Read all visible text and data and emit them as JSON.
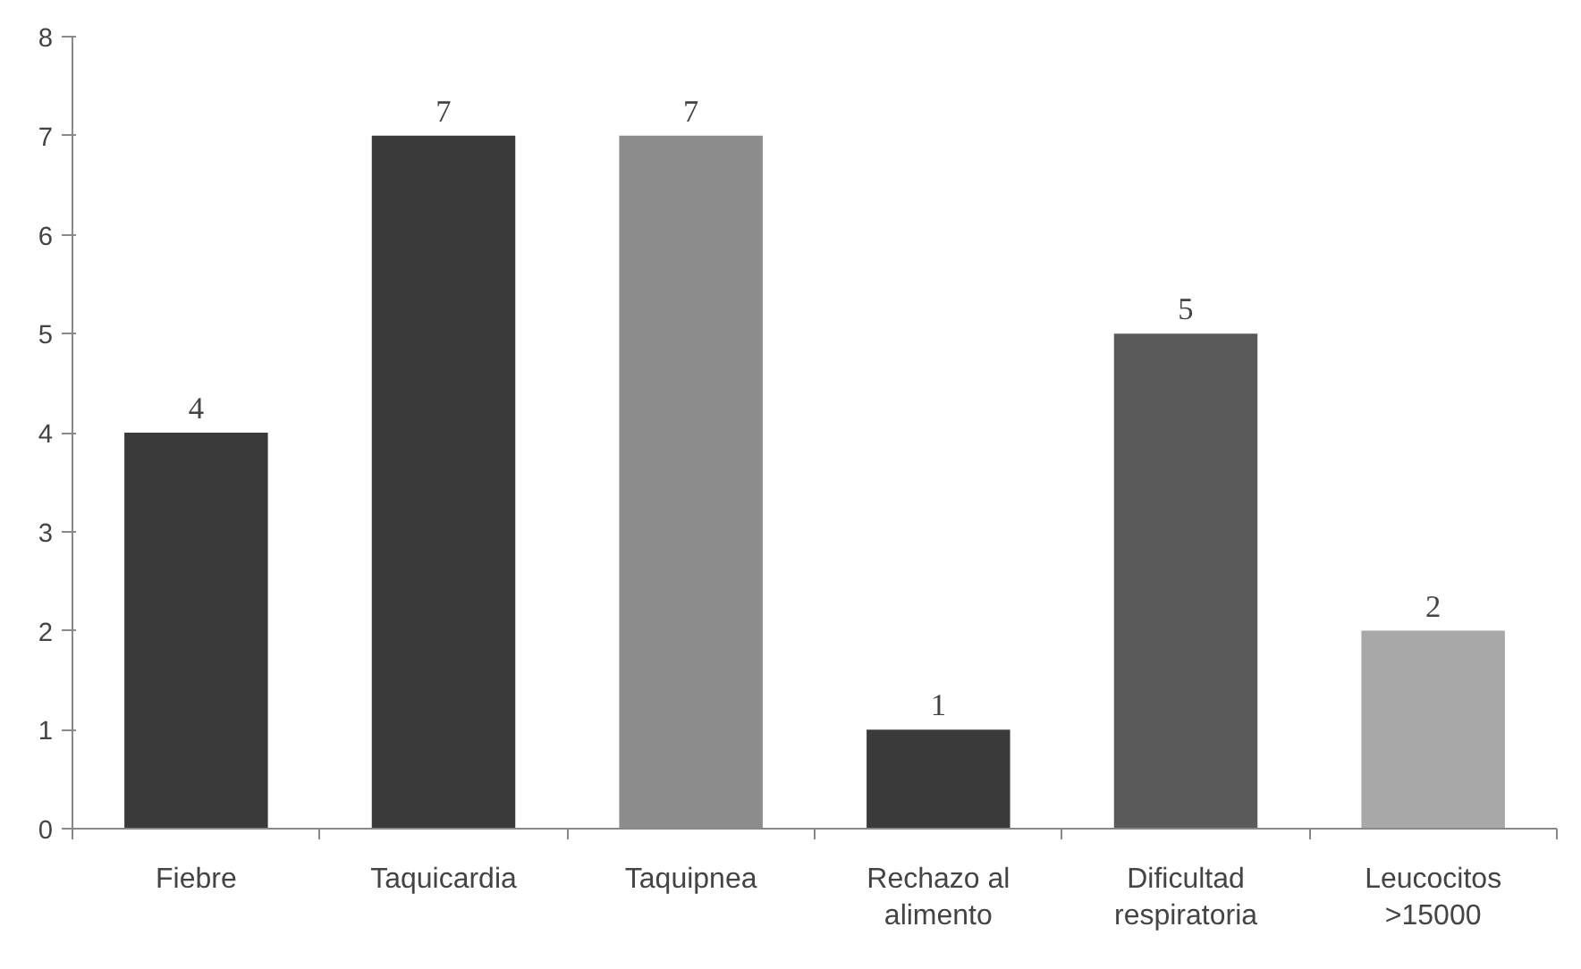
{
  "chart_data": {
    "type": "bar",
    "categories": [
      "Fiebre",
      "Taquicardia",
      "Taquipnea",
      "Rechazo al alimento",
      "Dificultad respiratoria",
      "Leucocitos >15000"
    ],
    "values": [
      4,
      7,
      7,
      1,
      5,
      2
    ],
    "colors": [
      "#3a3a3a",
      "#3a3a3a",
      "#8c8c8c",
      "#3a3a3a",
      "#5a5a5a",
      "#a8a8a8"
    ],
    "ylim": [
      0,
      8
    ],
    "yticks": [
      0,
      1,
      2,
      3,
      4,
      5,
      6,
      7,
      8
    ],
    "grid": false,
    "data_labels": true
  }
}
